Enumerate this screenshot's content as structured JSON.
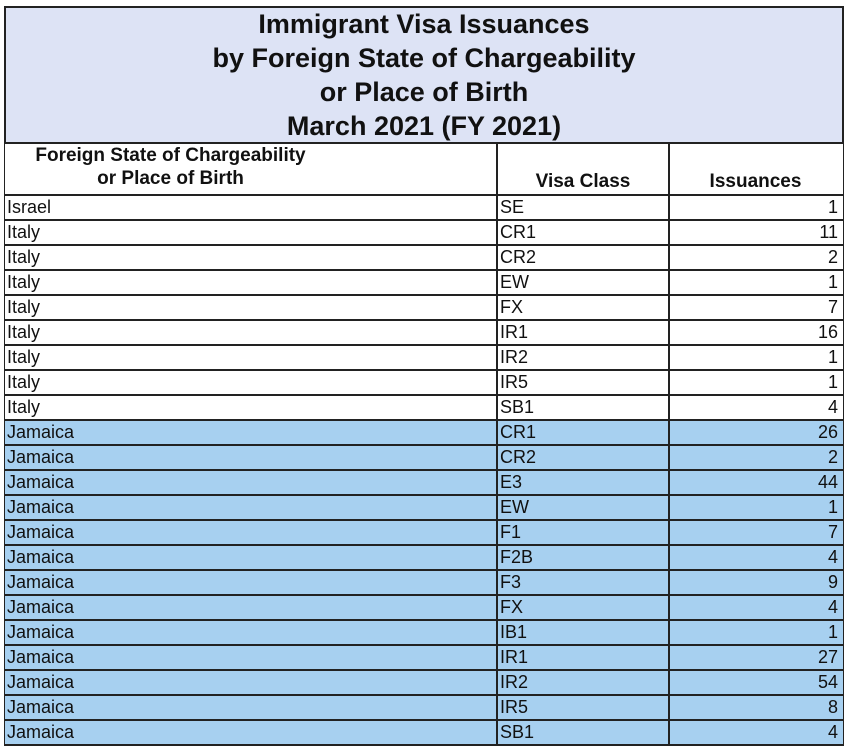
{
  "title": {
    "lines": [
      "Immigrant Visa Issuances",
      "by Foreign State of Chargeability",
      "or Place of Birth",
      "March 2021 (FY 2021)"
    ]
  },
  "table": {
    "headers": {
      "country_line1": "Foreign State of Chargeability",
      "country_line2": "or Place of Birth",
      "visa_class": "Visa Class",
      "issuances": "Issuances"
    },
    "rows": [
      {
        "country": "Israel",
        "visa_class": "SE",
        "issuances": "1",
        "highlighted": false
      },
      {
        "country": "Italy",
        "visa_class": "CR1",
        "issuances": "11",
        "highlighted": false
      },
      {
        "country": "Italy",
        "visa_class": "CR2",
        "issuances": "2",
        "highlighted": false
      },
      {
        "country": "Italy",
        "visa_class": "EW",
        "issuances": "1",
        "highlighted": false
      },
      {
        "country": "Italy",
        "visa_class": "FX",
        "issuances": "7",
        "highlighted": false
      },
      {
        "country": "Italy",
        "visa_class": "IR1",
        "issuances": "16",
        "highlighted": false
      },
      {
        "country": "Italy",
        "visa_class": "IR2",
        "issuances": "1",
        "highlighted": false
      },
      {
        "country": "Italy",
        "visa_class": "IR5",
        "issuances": "1",
        "highlighted": false
      },
      {
        "country": "Italy",
        "visa_class": "SB1",
        "issuances": "4",
        "highlighted": false
      },
      {
        "country": "Jamaica",
        "visa_class": "CR1",
        "issuances": "26",
        "highlighted": true
      },
      {
        "country": "Jamaica",
        "visa_class": "CR2",
        "issuances": "2",
        "highlighted": true
      },
      {
        "country": "Jamaica",
        "visa_class": "E3",
        "issuances": "44",
        "highlighted": true
      },
      {
        "country": "Jamaica",
        "visa_class": "EW",
        "issuances": "1",
        "highlighted": true
      },
      {
        "country": "Jamaica",
        "visa_class": "F1",
        "issuances": "7",
        "highlighted": true
      },
      {
        "country": "Jamaica",
        "visa_class": "F2B",
        "issuances": "4",
        "highlighted": true
      },
      {
        "country": "Jamaica",
        "visa_class": "F3",
        "issuances": "9",
        "highlighted": true
      },
      {
        "country": "Jamaica",
        "visa_class": "FX",
        "issuances": "4",
        "highlighted": true
      },
      {
        "country": "Jamaica",
        "visa_class": "IB1",
        "issuances": "1",
        "highlighted": true
      },
      {
        "country": "Jamaica",
        "visa_class": "IR1",
        "issuances": "27",
        "highlighted": true
      },
      {
        "country": "Jamaica",
        "visa_class": "IR2",
        "issuances": "54",
        "highlighted": true
      },
      {
        "country": "Jamaica",
        "visa_class": "IR5",
        "issuances": "8",
        "highlighted": true
      },
      {
        "country": "Jamaica",
        "visa_class": "SB1",
        "issuances": "4",
        "highlighted": true
      }
    ]
  },
  "colors": {
    "title_background": "#dde3f5",
    "highlight": "#a7d0f0"
  }
}
